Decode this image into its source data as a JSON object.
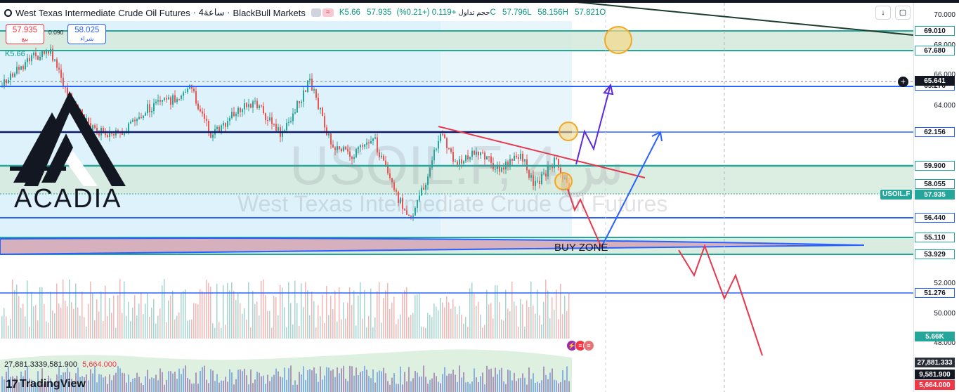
{
  "header": {
    "title": "West Texas Intermediate Crude Oil Futures",
    "interval": "· 4ساعة ·",
    "broker": "BlackBull Markets",
    "badge_label": "≈",
    "volume_prefix": "K5.66",
    "volume_label": "حجم تداول",
    "change": "+0.119 (+0.21%)",
    "close": "57.935C",
    "low": "57.796L",
    "high": "58.156H",
    "open": "57.821O"
  },
  "trade": {
    "sell_price": "57.935",
    "sell_label": "بيع",
    "spread": "0.090",
    "buy_price": "58.025",
    "buy_label": "شراء"
  },
  "volume_indicator_label": "K5.66",
  "volume_readout": {
    "v1": "27,881.333",
    "v2": "9,581.900",
    "v3": "5,664.000"
  },
  "watermark": {
    "symbol": "USOIL.F, 4س",
    "name": "West Texas Intermediate Crude Oil Futures"
  },
  "annotation": {
    "buy_zone": "BUY ZONE"
  },
  "logo": {
    "text": "ACADIA"
  },
  "tradingview": {
    "mark": "17",
    "name": "TradingView"
  },
  "price_axis": {
    "ticks": [
      "70.000",
      "68.000",
      "66.000",
      "64.000",
      "52.000",
      "50.000",
      "48.000"
    ],
    "levels": {
      "l69010": "69.010",
      "l67680": "67.680",
      "l65641": "65.641",
      "l65276": "65.276",
      "l62156": "62.156",
      "l59900": "59.900",
      "l58055": "58.055",
      "symbol": "USOIL.F",
      "l57935": "57.935",
      "l56440": "56.440",
      "l55110": "55.110",
      "l53929": "53.929",
      "l51276": "51.276",
      "vol": "5.66K",
      "v1": "27,881.333",
      "v2": "9,581.900",
      "v3": "5,664.000"
    }
  },
  "colors": {
    "up": "#26a69a",
    "down": "#ef5350",
    "blue_level": "#2962ff",
    "teal_level": "#26a69a",
    "zone_fill": "#d6eadd",
    "buy_zone_fill": "#d7b0bd",
    "forecast_red": "#e8364c",
    "forecast_blue": "#2962ff",
    "forecast_purple": "#5b2bd9",
    "trendline": "#e8364c",
    "marker": "#f5a623"
  }
}
